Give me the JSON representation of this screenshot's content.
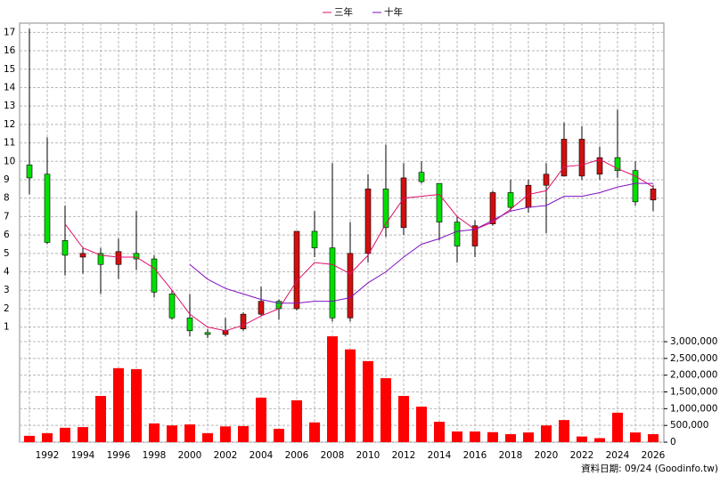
{
  "chart_data": {
    "type": "candlestick",
    "categories": [
      null,
      "1992",
      null,
      "1994",
      null,
      "1996",
      null,
      "1998",
      null,
      "2000",
      null,
      "2002",
      null,
      "2004",
      null,
      "2006",
      null,
      "2008",
      null,
      "2010",
      null,
      "2012",
      null,
      "2014",
      null,
      "2016",
      null,
      "2018",
      null,
      "2020",
      null,
      "2022",
      null,
      "2024",
      null,
      "2026"
    ],
    "open": [
      9.8,
      9.3,
      5.7,
      4.8,
      5.0,
      4.4,
      5.0,
      4.7,
      2.8,
      1.5,
      0.7,
      0.6,
      0.9,
      1.7,
      2.4,
      2.0,
      6.2,
      5.3,
      1.5,
      5.0,
      8.5,
      6.4,
      9.4,
      8.8,
      6.7,
      5.4,
      6.6,
      8.3,
      7.5,
      8.7,
      9.2,
      9.2,
      9.3,
      10.2,
      9.5,
      7.9
    ],
    "high": [
      17.2,
      11.3,
      7.6,
      5.3,
      5.3,
      5.8,
      7.3,
      4.9,
      3.0,
      2.8,
      0.9,
      1.5,
      1.8,
      3.2,
      2.5,
      6.2,
      7.3,
      9.9,
      6.7,
      9.3,
      10.9,
      9.9,
      10.0,
      8.8,
      7.0,
      6.8,
      8.4,
      9.0,
      9.0,
      9.9,
      12.1,
      11.9,
      10.8,
      12.8,
      10.0,
      8.7
    ],
    "low": [
      8.2,
      5.5,
      3.8,
      3.9,
      2.8,
      3.6,
      4.1,
      2.6,
      1.4,
      0.5,
      0.4,
      0.5,
      0.8,
      1.6,
      1.4,
      1.9,
      4.8,
      1.3,
      1.3,
      4.5,
      5.9,
      6.0,
      8.8,
      5.7,
      4.5,
      4.8,
      6.5,
      7.3,
      7.2,
      6.1,
      9.2,
      9.0,
      9.0,
      9.1,
      7.6,
      7.3
    ],
    "close": [
      9.1,
      5.6,
      4.9,
      5.0,
      4.4,
      5.1,
      4.7,
      2.9,
      1.5,
      0.8,
      0.6,
      0.8,
      1.7,
      2.4,
      2.0,
      6.2,
      5.3,
      1.5,
      5.0,
      8.5,
      6.4,
      9.1,
      8.9,
      6.7,
      5.4,
      6.5,
      8.3,
      7.5,
      8.7,
      9.3,
      11.2,
      11.2,
      10.2,
      9.5,
      7.8,
      8.5
    ],
    "up_color": "#d01010",
    "down_color": "#00e000",
    "series": [
      {
        "name": "三年",
        "color": "#e0106a",
        "values": [
          null,
          null,
          6.6,
          5.3,
          4.9,
          4.8,
          4.8,
          4.2,
          3.0,
          1.7,
          1.0,
          0.8,
          1.1,
          1.6,
          2.0,
          3.5,
          4.5,
          4.4,
          3.9,
          4.9,
          6.6,
          8.0,
          8.1,
          8.2,
          7.0,
          6.3,
          6.7,
          7.4,
          8.2,
          8.4,
          9.7,
          9.8,
          10.1,
          9.6,
          9.2,
          8.6
        ]
      },
      {
        "name": "十年",
        "color": "#8010c0",
        "values": [
          null,
          null,
          null,
          null,
          null,
          null,
          null,
          null,
          null,
          4.4,
          3.6,
          3.1,
          2.8,
          2.5,
          2.3,
          2.3,
          2.4,
          2.4,
          2.6,
          3.4,
          4.0,
          4.8,
          5.5,
          5.8,
          6.2,
          6.3,
          6.8,
          7.3,
          7.5,
          7.6,
          8.1,
          8.1,
          8.3,
          8.6,
          8.8,
          8.8
        ]
      }
    ],
    "volume": {
      "color": "#ff0000",
      "axis": "y2",
      "values": [
        190000,
        270000,
        430000,
        450000,
        1380000,
        2210000,
        2180000,
        560000,
        500000,
        530000,
        270000,
        470000,
        480000,
        1330000,
        400000,
        1250000,
        590000,
        3160000,
        2770000,
        2420000,
        1910000,
        1380000,
        1060000,
        610000,
        320000,
        320000,
        300000,
        240000,
        290000,
        500000,
        660000,
        170000,
        120000,
        880000,
        290000,
        240000
      ]
    },
    "ylim": [
      0.5,
      17.5
    ],
    "yticks": [
      1,
      2,
      3,
      4,
      5,
      6,
      7,
      8,
      9,
      10,
      11,
      12,
      13,
      14,
      15,
      16,
      17
    ],
    "y2lim": [
      0,
      3160000
    ],
    "y2ticks": [
      0,
      {
        "value": 500000,
        "label": "500,000"
      },
      {
        "value": 1000000,
        "label": "1,000,000"
      },
      {
        "value": 1500000,
        "label": "1,500,000"
      },
      {
        "value": 2000000,
        "label": "2,000,000"
      },
      {
        "value": 2500000,
        "label": "2,500,000"
      },
      {
        "value": 3000000,
        "label": "3,000,000"
      }
    ],
    "grid": true,
    "footer": "資料日期: 09/24 (Goodinfo.tw)"
  }
}
